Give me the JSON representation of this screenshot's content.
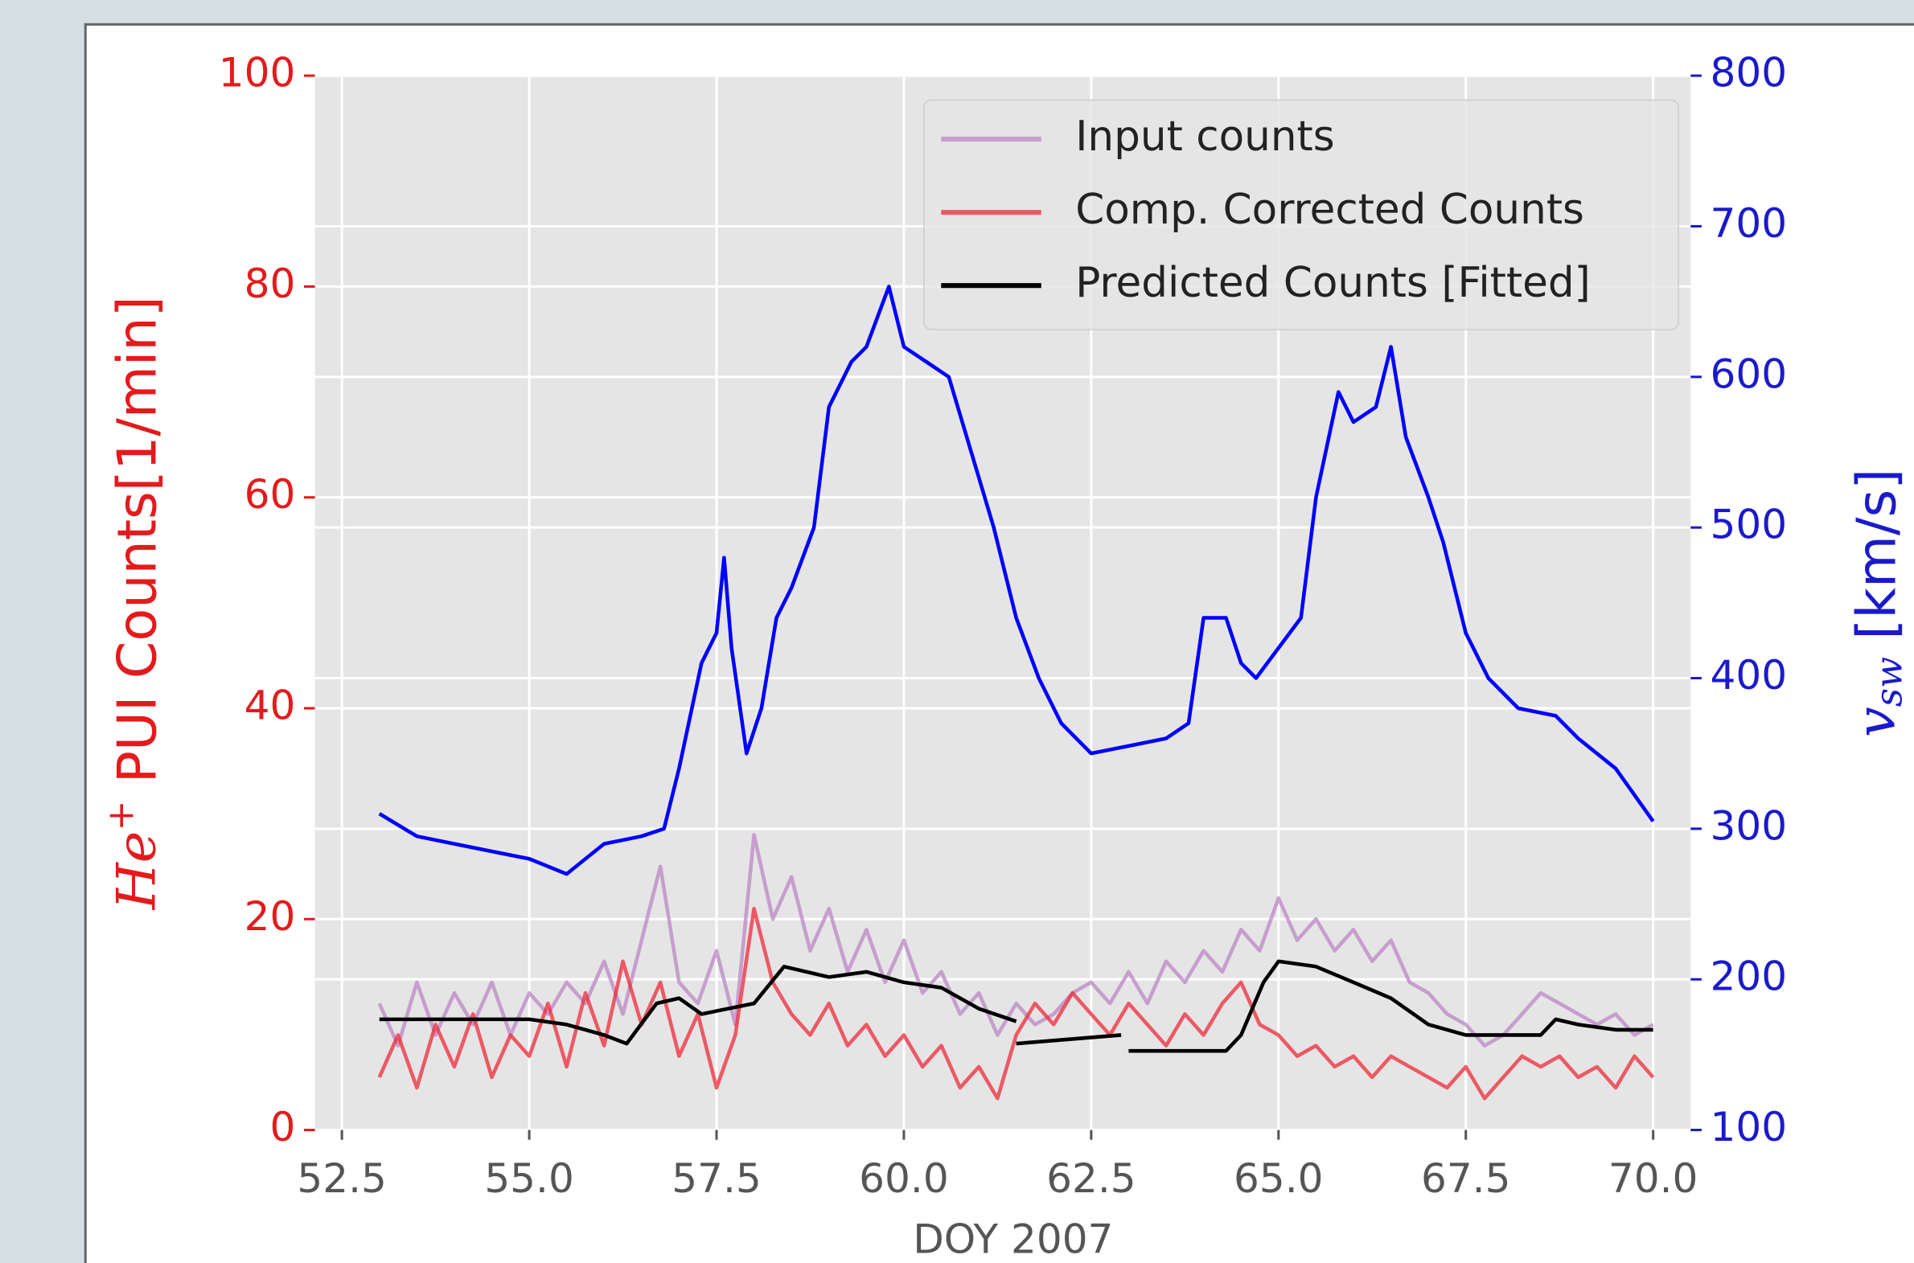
{
  "chart_data": {
    "type": "line",
    "xlabel": "DOY 2007",
    "ylabel": [
      "He",
      "+",
      " PUI Counts[1/min]"
    ],
    "y2label": [
      "v",
      "sw",
      " [km/s]"
    ],
    "xlim": [
      52.14,
      70.5
    ],
    "ylim": [
      0,
      100
    ],
    "y2lim": [
      100,
      800
    ],
    "xticks": [
      52.5,
      {
        "value": 55,
        "label": "55.0"
      },
      57.5,
      {
        "value": 60,
        "label": "60.0"
      },
      62.5,
      {
        "value": 65,
        "label": "65.0"
      },
      67.5,
      {
        "value": 70,
        "label": "70.0"
      }
    ],
    "yticks": [
      0,
      20,
      40,
      60,
      80,
      100
    ],
    "y2ticks": [
      100,
      200,
      300,
      400,
      500,
      600,
      700,
      800
    ],
    "grid": true,
    "legend": "upper right",
    "series": [
      {
        "name": "Input counts",
        "color": "#bb86c4",
        "x": [
          53,
          53.25,
          53.5,
          53.75,
          54,
          54.25,
          54.5,
          54.75,
          55,
          55.25,
          55.5,
          55.75,
          56,
          56.25,
          56.5,
          56.75,
          57,
          57.25,
          57.5,
          57.75,
          58,
          58.25,
          58.5,
          58.75,
          59,
          59.25,
          59.5,
          59.75,
          60,
          60.25,
          60.5,
          60.75,
          61,
          61.25,
          61.5,
          61.75,
          62,
          62.25,
          62.5,
          62.75,
          63,
          63.25,
          63.5,
          63.75,
          64,
          64.25,
          64.5,
          64.75,
          65,
          65.25,
          65.5,
          65.75,
          66,
          66.25,
          66.5,
          66.75,
          67,
          67.25,
          67.5,
          67.75,
          68,
          68.25,
          68.5,
          68.75,
          69,
          69.25,
          69.5,
          69.75,
          70
        ],
        "values": [
          12,
          8,
          14,
          9,
          13,
          10,
          14,
          9,
          13,
          11,
          14,
          12,
          16,
          11,
          18,
          25,
          14,
          12,
          17,
          10,
          28,
          20,
          24,
          17,
          21,
          15,
          19,
          14,
          18,
          13,
          15,
          11,
          13,
          9,
          12,
          10,
          11,
          13,
          14,
          12,
          15,
          12,
          16,
          14,
          17,
          15,
          19,
          17,
          22,
          18,
          20,
          17,
          19,
          16,
          18,
          14,
          13,
          11,
          10,
          8,
          9,
          11,
          13,
          12,
          11,
          10,
          11,
          9,
          10
        ]
      },
      {
        "name": "Comp. Corrected Counts",
        "color": "#ee2a3a",
        "x": [
          53,
          53.25,
          53.5,
          53.75,
          54,
          54.25,
          54.5,
          54.75,
          55,
          55.25,
          55.5,
          55.75,
          56,
          56.25,
          56.5,
          56.75,
          57,
          57.25,
          57.5,
          57.75,
          58,
          58.25,
          58.5,
          58.75,
          59,
          59.25,
          59.5,
          59.75,
          60,
          60.25,
          60.5,
          60.75,
          61,
          61.25,
          61.5,
          61.75,
          62,
          62.25,
          62.5,
          62.75,
          63,
          63.25,
          63.5,
          63.75,
          64,
          64.25,
          64.5,
          64.75,
          65,
          65.25,
          65.5,
          65.75,
          66,
          66.25,
          66.5,
          66.75,
          67,
          67.25,
          67.5,
          67.75,
          68,
          68.25,
          68.5,
          68.75,
          69,
          69.25,
          69.5,
          69.75,
          70
        ],
        "values": [
          5,
          9,
          4,
          10,
          6,
          11,
          5,
          9,
          7,
          12,
          6,
          13,
          8,
          16,
          10,
          14,
          7,
          11,
          4,
          9,
          21,
          14,
          11,
          9,
          12,
          8,
          10,
          7,
          9,
          6,
          8,
          4,
          6,
          3,
          9,
          12,
          10,
          13,
          11,
          9,
          12,
          10,
          8,
          11,
          9,
          12,
          14,
          10,
          9,
          7,
          8,
          6,
          7,
          5,
          7,
          6,
          5,
          4,
          6,
          3,
          5,
          7,
          6,
          7,
          5,
          6,
          4,
          7,
          5
        ]
      },
      {
        "name": "Predicted Counts [Fitted]",
        "color": "#000000",
        "x": [
          53,
          55,
          55.5,
          56,
          56.3,
          56.7,
          57,
          57.3,
          58,
          58.4,
          59,
          59.5,
          60,
          60.5,
          61,
          61.5,
          61.5,
          61.5,
          62.9,
          62.9,
          63,
          64.3,
          64.5,
          64.8,
          65,
          65.5,
          66,
          66.5,
          67,
          67.5,
          68,
          68.5,
          68.7,
          69,
          69.5,
          70
        ],
        "values": [
          10.5,
          10.5,
          10,
          9,
          8.2,
          12,
          12.5,
          11,
          12,
          15.5,
          14.5,
          15,
          14,
          13.5,
          11.5,
          10.3,
          null,
          8.2,
          9,
          null,
          7.5,
          7.5,
          9,
          14,
          16,
          15.5,
          14,
          12.5,
          10,
          9,
          9,
          9,
          10.5,
          10,
          9.5,
          9.5
        ]
      },
      {
        "name": null,
        "color": "#0000ff",
        "axis": "y2",
        "x": [
          53,
          53.5,
          54,
          54.5,
          55,
          55.5,
          56,
          56.5,
          56.8,
          57,
          57.3,
          57.5,
          57.6,
          57.7,
          57.9,
          58.1,
          58.3,
          58.5,
          58.8,
          59,
          59.3,
          59.5,
          59.8,
          60,
          60.3,
          60.6,
          60.9,
          61.2,
          61.5,
          61.8,
          62.1,
          62.5,
          63,
          63.5,
          63.8,
          64,
          64.3,
          64.5,
          64.7,
          65,
          65.3,
          65.5,
          65.8,
          66,
          66.3,
          66.5,
          66.7,
          67,
          67.2,
          67.5,
          67.8,
          68.2,
          68.7,
          69,
          69.5,
          70
        ],
        "values": [
          310,
          295,
          290,
          285,
          280,
          270,
          290,
          295,
          300,
          340,
          410,
          430,
          480,
          420,
          350,
          380,
          440,
          460,
          500,
          580,
          610,
          620,
          660,
          620,
          610,
          600,
          550,
          500,
          440,
          400,
          370,
          350,
          355,
          360,
          370,
          440,
          440,
          410,
          400,
          420,
          440,
          520,
          590,
          570,
          580,
          620,
          560,
          520,
          490,
          430,
          400,
          380,
          375,
          360,
          340,
          305
        ]
      }
    ]
  }
}
